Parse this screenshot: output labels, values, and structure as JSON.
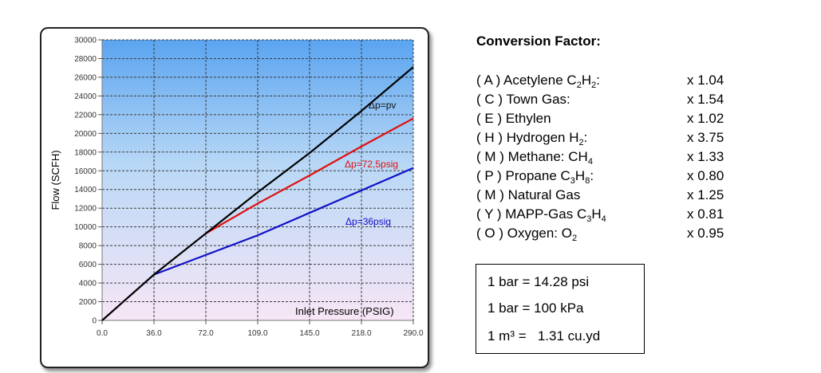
{
  "chart_data": {
    "type": "line",
    "xlabel": "Inlet Pressure (PSIG)",
    "ylabel": "Flow  (SCFH)",
    "x_tick_labels": [
      "0.0",
      "36.0",
      "72.0",
      "109.0",
      "145.0",
      "218.0",
      "290.0"
    ],
    "y_ticks": [
      0,
      2000,
      4000,
      6000,
      8000,
      10000,
      12000,
      14000,
      16000,
      18000,
      20000,
      22000,
      24000,
      26000,
      28000,
      30000
    ],
    "ylim": [
      0,
      30000
    ],
    "grid": true,
    "series": [
      {
        "name": "Δp=pv",
        "color": "#000000",
        "x": [
          "0.0",
          "36.0",
          "72.0",
          "109.0",
          "145.0",
          "218.0",
          "290.0"
        ],
        "values": [
          0,
          4900,
          9300,
          13700,
          17900,
          22400,
          27100
        ]
      },
      {
        "name": "Δp=72,5psig",
        "color": "#e01010",
        "x": [
          "72.0",
          "109.0",
          "145.0",
          "218.0",
          "290.0"
        ],
        "values": [
          9300,
          12500,
          15500,
          18600,
          21600
        ]
      },
      {
        "name": "Δp=36psig",
        "color": "#1010c8",
        "x": [
          "36.0",
          "72.0",
          "109.0",
          "145.0",
          "218.0",
          "290.0"
        ],
        "values": [
          4900,
          7000,
          9100,
          11500,
          13900,
          16300
        ]
      }
    ]
  },
  "conversion": {
    "title": "Conversion Factor:",
    "items": [
      {
        "prefix": "( A ) Acetylene C",
        "s1": "2",
        "mid": "H",
        "s2": "2",
        "suffix": ":",
        "factor": "x 1.04"
      },
      {
        "prefix": "( C ) Town Gas:",
        "s1": "",
        "mid": "",
        "s2": "",
        "suffix": "",
        "factor": "x 1.54"
      },
      {
        "prefix": "( E ) Ethylen",
        "s1": "",
        "mid": "",
        "s2": "",
        "suffix": "",
        "factor": "x 1.02"
      },
      {
        "prefix": "( H ) Hydrogen H",
        "s1": "2",
        "mid": "",
        "s2": "",
        "suffix": ":",
        "factor": "x 3.75"
      },
      {
        "prefix": "( M ) Methane: CH",
        "s1": "4",
        "mid": "",
        "s2": "",
        "suffix": "",
        "factor": "x 1.33"
      },
      {
        "prefix": "( P ) Propane C",
        "s1": "3",
        "mid": "H",
        "s2": "8",
        "suffix": ":",
        "factor": "x 0.80"
      },
      {
        "prefix": "( M ) Natural Gas",
        "s1": "",
        "mid": "",
        "s2": "",
        "suffix": "",
        "factor": "x 1.25"
      },
      {
        "prefix": "( Y ) MAPP-Gas C",
        "s1": "3",
        "mid": "H",
        "s2": "4",
        "suffix": "",
        "factor": "x 0.81"
      },
      {
        "prefix": "( O ) Oxygen: O",
        "s1": "2",
        "mid": "",
        "s2": "",
        "suffix": "",
        "factor": "x 0.95"
      }
    ]
  },
  "units": [
    "1 bar = 14.28 psi",
    "1 bar = 100 kPa",
    "1 m³ =   1.31 cu.yd"
  ]
}
